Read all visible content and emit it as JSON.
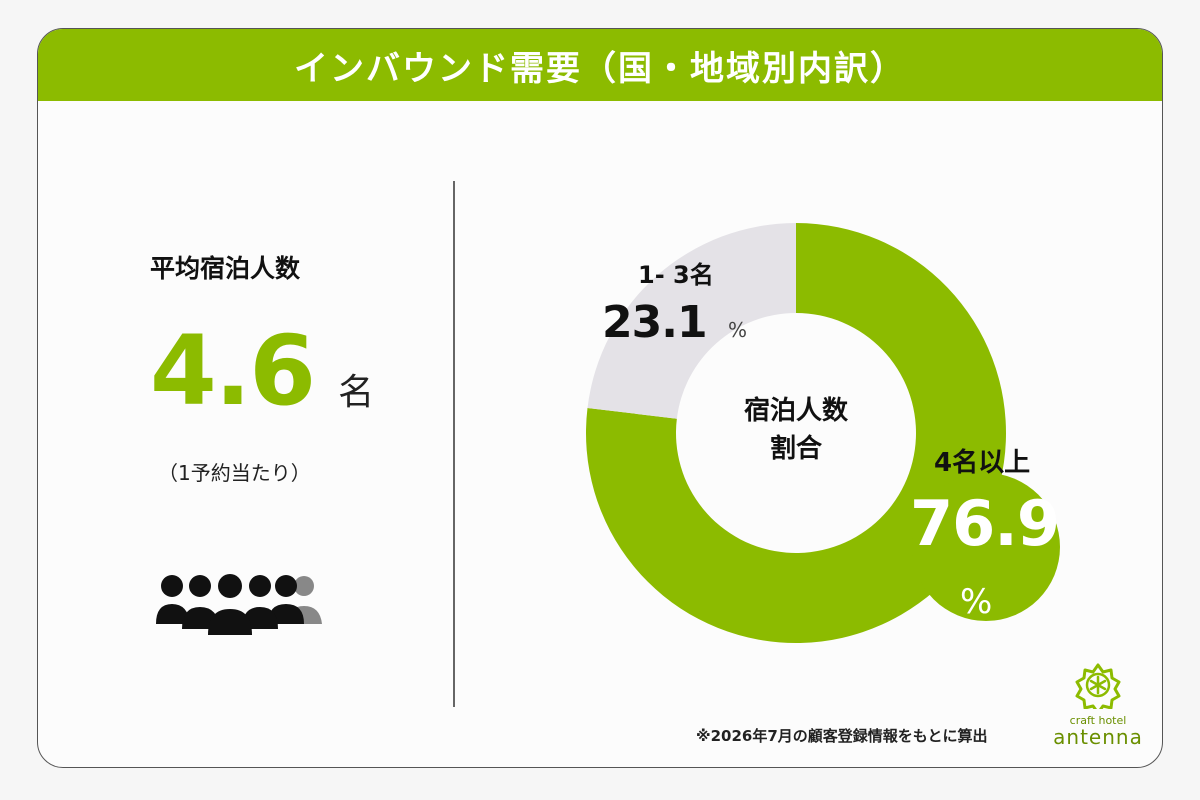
{
  "header": {
    "title": "インバウンド需要（国・地域別内訳）"
  },
  "avg_stay": {
    "label": "平均宿泊人数",
    "value": "4.6",
    "unit": "名",
    "note": "（1予約当たり）"
  },
  "chart_data": {
    "type": "pie",
    "title": "宿泊人数\n割合",
    "center_label_line1": "宿泊人数",
    "center_label_line2": "割合",
    "slices": [
      {
        "label": "4名以上",
        "value": 76.9,
        "value_text": "76.9",
        "unit": "%",
        "color": "#8cbb00"
      },
      {
        "label": "1- 3名",
        "value": 23.1,
        "value_text": "23.1",
        "unit": "%",
        "color": "#e4e2e7"
      }
    ]
  },
  "footnote": "※2026年7月の顧客登録情報をもとに算出",
  "logo": {
    "small": "craft hotel",
    "name": "antenna",
    "color": "#6a8f00"
  },
  "colors": {
    "accent": "#8cbb00",
    "gray_slice": "#e4e2e7",
    "text": "#111111"
  },
  "icons": {
    "people": "group-of-people-icon",
    "logo_mark": "asterisk-flower-icon"
  }
}
